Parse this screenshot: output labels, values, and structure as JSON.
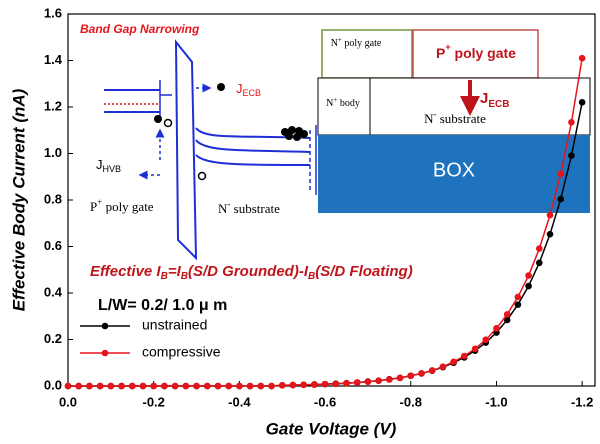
{
  "chart_data": {
    "type": "line",
    "x_label": "Gate Voltage (V)",
    "y_label": "Effective Body Current (nA)",
    "xlim": [
      0,
      -1.23
    ],
    "ylim": [
      0,
      1.6
    ],
    "xticks": [
      {
        "value": 0,
        "label": "0.0"
      },
      -0.2,
      -0.4,
      -0.6,
      -0.8,
      {
        "value": -1,
        "label": "-1.0"
      },
      -1.2
    ],
    "yticks": [
      {
        "value": 0,
        "label": "0.0"
      },
      0.2,
      0.4,
      0.6,
      0.8,
      {
        "value": 1,
        "label": "1.0"
      },
      1.2,
      1.4,
      1.6
    ],
    "x": [
      0,
      -0.025,
      -0.05,
      -0.075,
      -0.1,
      -0.125,
      -0.15,
      -0.175,
      -0.2,
      -0.225,
      -0.25,
      -0.275,
      -0.3,
      -0.325,
      -0.35,
      -0.375,
      -0.4,
      -0.425,
      -0.45,
      -0.475,
      -0.5,
      -0.525,
      -0.55,
      -0.575,
      -0.6,
      -0.625,
      -0.65,
      -0.675,
      -0.7,
      -0.725,
      -0.75,
      -0.775,
      -0.8,
      -0.825,
      -0.85,
      -0.875,
      -0.9,
      -0.925,
      -0.95,
      -0.975,
      -1,
      -1.025,
      -1.05,
      -1.075,
      -1.1,
      -1.125,
      -1.15,
      -1.175,
      -1.2
    ],
    "series": [
      {
        "name": "unstrained",
        "color": "#000000",
        "values": [
          0,
          0,
          0,
          0,
          0,
          0,
          0,
          0,
          0,
          0,
          0,
          0,
          0,
          0,
          0,
          0,
          0,
          0,
          0,
          0,
          0.003,
          0.004,
          0.005,
          0.007,
          0.008,
          0.01,
          0.012,
          0.015,
          0.019,
          0.023,
          0.029,
          0.035,
          0.044,
          0.054,
          0.066,
          0.081,
          0.1,
          0.123,
          0.152,
          0.187,
          0.23,
          0.284,
          0.35,
          0.43,
          0.53,
          0.653,
          0.804,
          0.991,
          1.22
        ]
      },
      {
        "name": "compressive",
        "color": "#e8141b",
        "values": [
          0,
          0,
          0,
          0,
          0,
          0,
          0,
          0,
          0,
          0,
          0,
          0,
          0,
          0,
          0,
          0,
          0,
          0,
          0,
          0,
          0.003,
          0.004,
          0.005,
          0.006,
          0.008,
          0.009,
          0.012,
          0.015,
          0.018,
          0.023,
          0.028,
          0.035,
          0.044,
          0.054,
          0.067,
          0.083,
          0.104,
          0.129,
          0.16,
          0.199,
          0.248,
          0.308,
          0.383,
          0.475,
          0.591,
          0.735,
          0.913,
          1.134,
          1.41
        ]
      }
    ],
    "legend_title": "L/W= 0.2/ 1.0 μ m",
    "formula": [
      "Effective I",
      "B",
      "=I",
      "B",
      "(S/D Grounded)-I",
      "B",
      "(S/D Floating)"
    ],
    "band_diagram": {
      "title": "Band Gap Narrowing",
      "j_ecb": [
        "J",
        "ECB"
      ],
      "j_hvb": [
        "J",
        "HVB"
      ],
      "gate": [
        "P",
        "+",
        " poly gate"
      ],
      "substrate": [
        "N",
        "-",
        " substrate"
      ]
    },
    "structure": {
      "n_gate": [
        "N",
        "+",
        " poly gate"
      ],
      "p_gate": [
        "P",
        "+",
        " poly gate"
      ],
      "body": [
        "N",
        "+",
        " body"
      ],
      "substrate": [
        "N",
        "-",
        " substrate"
      ],
      "j_ecb": [
        "J",
        "ECB"
      ],
      "box": "BOX"
    }
  }
}
